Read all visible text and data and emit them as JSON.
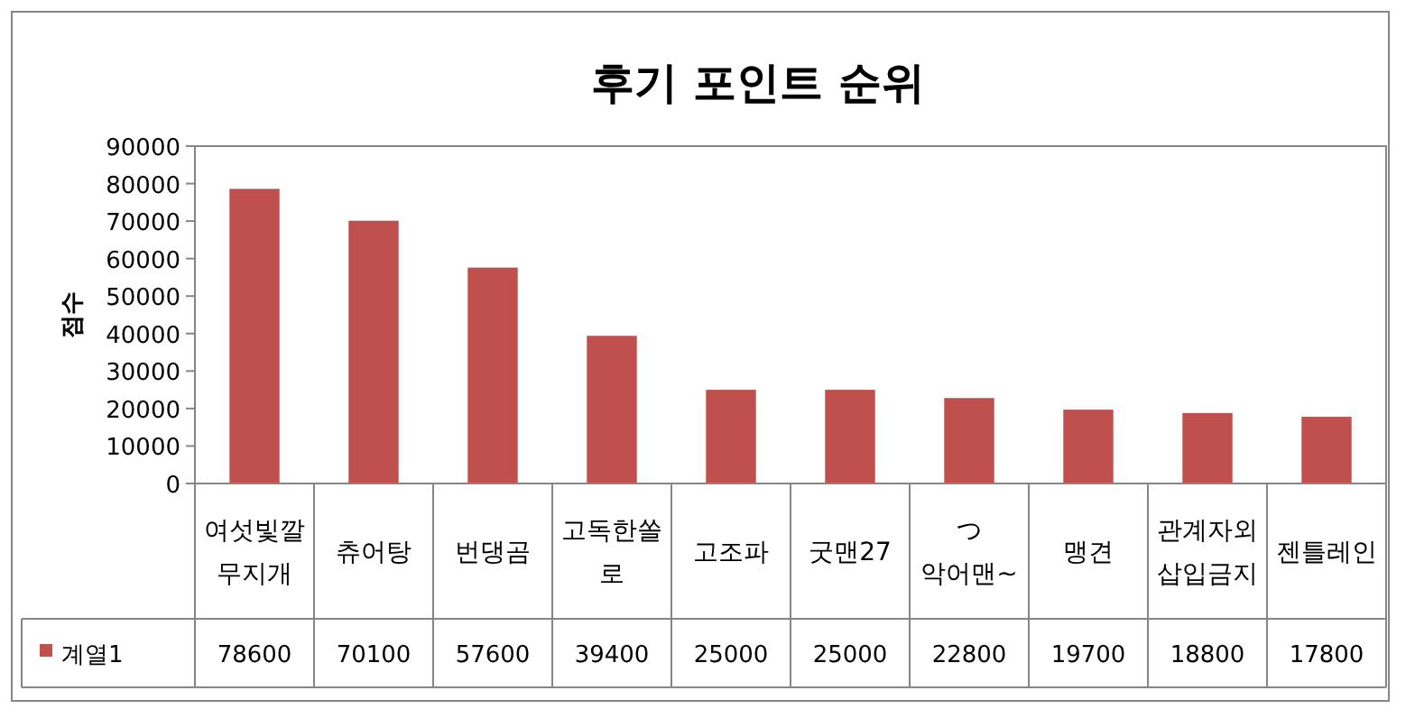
{
  "chart_data": {
    "type": "bar",
    "title": "후기 포인트 순위",
    "ylabel": "점수",
    "categories": [
      "여섯빛깔무지개",
      "츄어탕",
      "번댕곰",
      "고독한쏠로",
      "고조파",
      "굿맨27",
      "つ 악어맨~",
      "맹견",
      "관계자외삽입금지",
      "젠틀레인"
    ],
    "series": [
      {
        "name": "계열1",
        "color": "#c0504d",
        "values": [
          78600,
          70100,
          57600,
          39400,
          25000,
          25000,
          22800,
          19700,
          18800,
          17800
        ]
      }
    ],
    "ylim": [
      0,
      90000
    ],
    "yticks": [
      0,
      10000,
      20000,
      30000,
      40000,
      50000,
      60000,
      70000,
      80000,
      90000
    ],
    "data_labels": true,
    "legend": "bottom left",
    "grid": false
  }
}
